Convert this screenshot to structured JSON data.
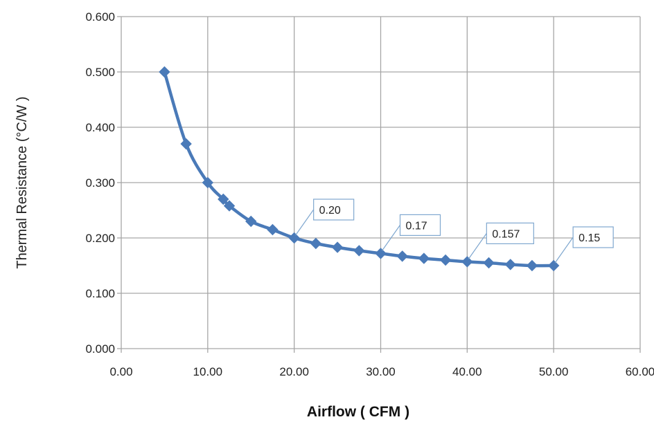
{
  "chart_data": {
    "type": "line",
    "title": "",
    "xlabel": "Airflow ( CFM )",
    "ylabel": "Thermal Resistance (°C/W )",
    "xlim": [
      0,
      60
    ],
    "ylim": [
      0,
      0.6
    ],
    "x_ticks": [
      "0.00",
      "10.00",
      "20.00",
      "30.00",
      "40.00",
      "50.00",
      "60.00"
    ],
    "y_ticks": [
      "0.000",
      "0.100",
      "0.200",
      "0.300",
      "0.400",
      "0.500",
      "0.600"
    ],
    "grid": true,
    "legend": "none",
    "marker": "diamond",
    "series_color": "#4a7ab8",
    "series": [
      {
        "x": [
          5.0,
          7.5,
          10.0,
          11.8,
          12.5,
          15.0,
          17.5,
          20.0,
          22.5,
          25.0,
          27.5,
          30.0,
          32.5,
          35.0,
          37.5,
          40.0,
          42.5,
          45.0,
          47.5,
          50.0
        ],
        "y": [
          0.5,
          0.37,
          0.3,
          0.27,
          0.258,
          0.23,
          0.215,
          0.2,
          0.19,
          0.183,
          0.177,
          0.172,
          0.167,
          0.163,
          0.16,
          0.157,
          0.155,
          0.152,
          0.15,
          0.15
        ]
      }
    ],
    "annotations": [
      {
        "text": "0.20",
        "x": 20.0,
        "y": 0.2
      },
      {
        "text": "0.17",
        "x": 30.0,
        "y": 0.172
      },
      {
        "text": "0.157",
        "x": 40.0,
        "y": 0.157
      },
      {
        "text": "0.15",
        "x": 50.0,
        "y": 0.15
      }
    ]
  }
}
